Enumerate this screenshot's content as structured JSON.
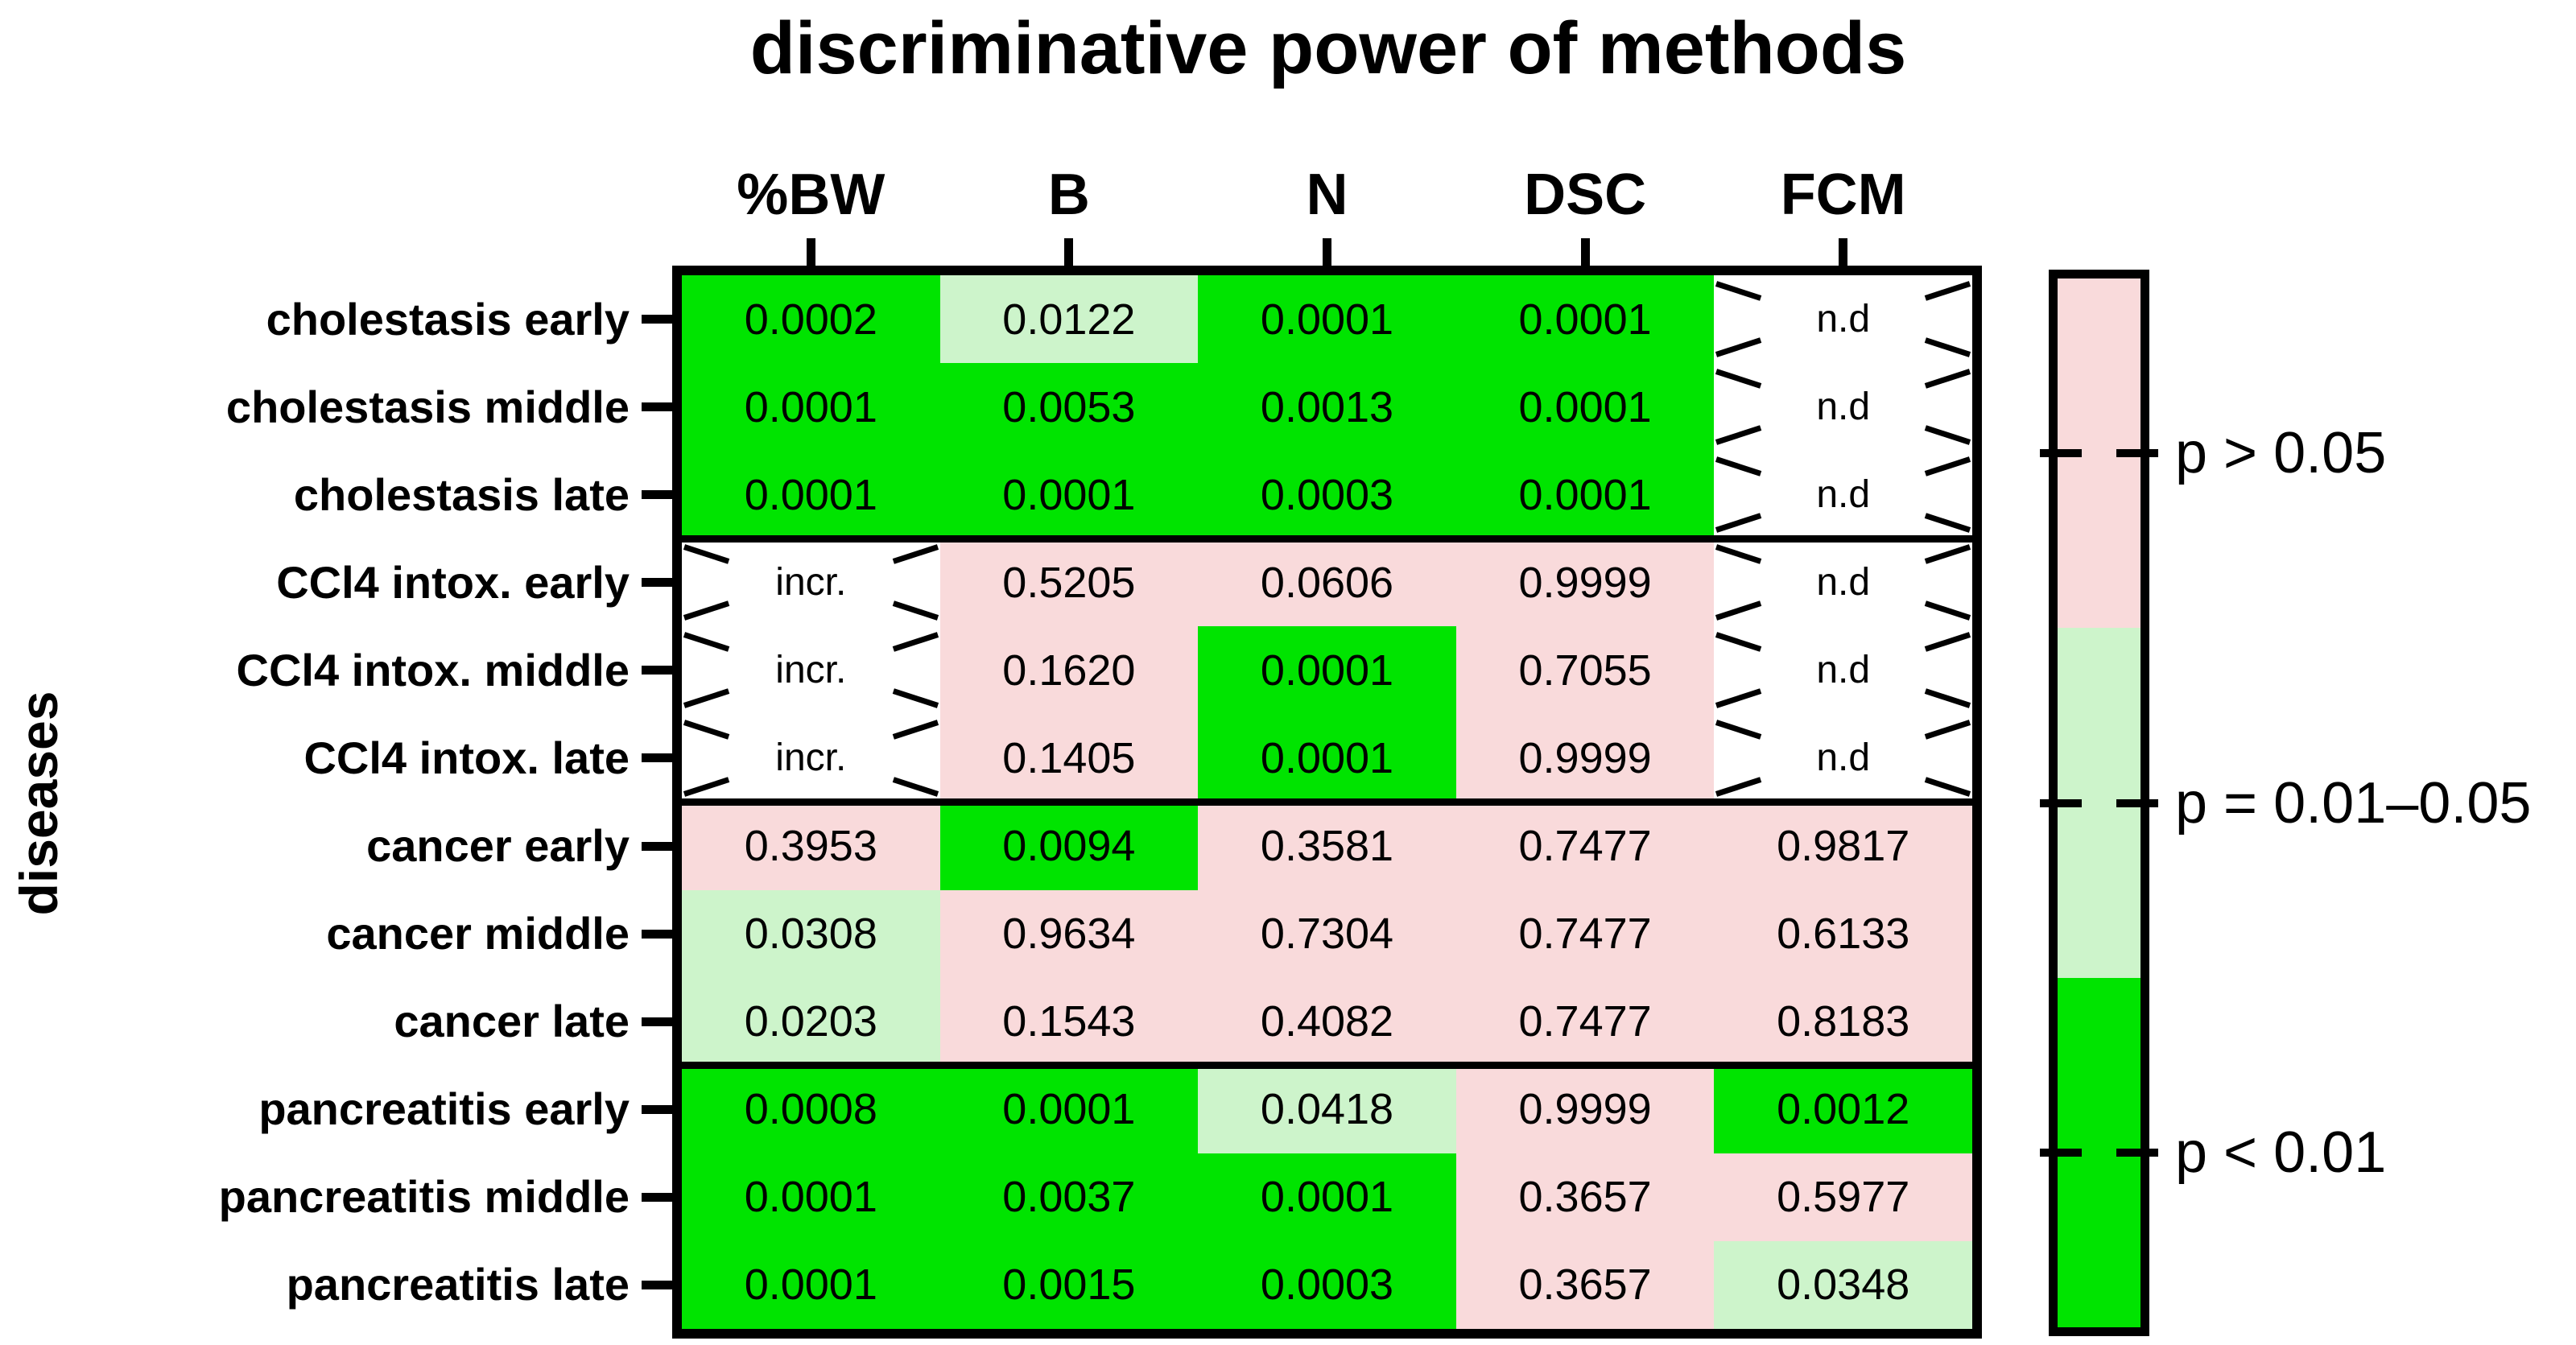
{
  "chart_data": {
    "type": "heatmap",
    "title": "discriminative power of methods",
    "xlabel": "",
    "ylabel": "diseases",
    "columns": [
      "%BW",
      "B",
      "N",
      "DSC",
      "FCM"
    ],
    "rows": [
      "cholestasis early",
      "cholestasis middle",
      "cholestasis late",
      "CCl4 intox. early",
      "CCl4 intox. middle",
      "CCl4 intox. late",
      "cancer early",
      "cancer middle",
      "cancer late",
      "pancreatitis early",
      "pancreatitis middle",
      "pancreatitis late"
    ],
    "row_groups": [
      [
        "cholestasis",
        3
      ],
      [
        "CCl4 intox.",
        3
      ],
      [
        "cancer",
        3
      ],
      [
        "pancreatitis",
        3
      ]
    ],
    "values": [
      [
        "0.0002",
        "0.0122",
        "0.0001",
        "0.0001",
        "n.d"
      ],
      [
        "0.0001",
        "0.0053",
        "0.0013",
        "0.0001",
        "n.d"
      ],
      [
        "0.0001",
        "0.0001",
        "0.0003",
        "0.0001",
        "n.d"
      ],
      [
        "incr.",
        "0.5205",
        "0.0606",
        "0.9999",
        "n.d"
      ],
      [
        "incr.",
        "0.1620",
        "0.0001",
        "0.7055",
        "n.d"
      ],
      [
        "incr.",
        "0.1405",
        "0.0001",
        "0.9999",
        "n.d"
      ],
      [
        "0.3953",
        "0.0094",
        "0.3581",
        "0.7477",
        "0.9817"
      ],
      [
        "0.0308",
        "0.9634",
        "0.7304",
        "0.7477",
        "0.6133"
      ],
      [
        "0.0203",
        "0.1543",
        "0.4082",
        "0.7477",
        "0.8183"
      ],
      [
        "0.0008",
        "0.0001",
        "0.0418",
        "0.9999",
        "0.0012"
      ],
      [
        "0.0001",
        "0.0037",
        "0.0001",
        "0.3657",
        "0.5977"
      ],
      [
        "0.0001",
        "0.0015",
        "0.0003",
        "0.3657",
        "0.0348"
      ]
    ],
    "levels": [
      [
        "green",
        "lightgreen",
        "green",
        "green",
        "white"
      ],
      [
        "green",
        "green",
        "green",
        "green",
        "white"
      ],
      [
        "green",
        "green",
        "green",
        "green",
        "white"
      ],
      [
        "white",
        "pink",
        "pink",
        "pink",
        "white"
      ],
      [
        "white",
        "pink",
        "green",
        "pink",
        "white"
      ],
      [
        "white",
        "pink",
        "green",
        "pink",
        "white"
      ],
      [
        "pink",
        "green",
        "pink",
        "pink",
        "pink"
      ],
      [
        "lightgreen",
        "pink",
        "pink",
        "pink",
        "pink"
      ],
      [
        "lightgreen",
        "pink",
        "pink",
        "pink",
        "pink"
      ],
      [
        "green",
        "green",
        "lightgreen",
        "pink",
        "green"
      ],
      [
        "green",
        "green",
        "green",
        "pink",
        "pink"
      ],
      [
        "green",
        "green",
        "green",
        "pink",
        "lightgreen"
      ]
    ],
    "palette": {
      "green": "#00e400",
      "lightgreen": "#cdf4cb",
      "pink": "#f9dadb",
      "white": "#ffffff"
    },
    "legend": [
      {
        "label": "p > 0.05",
        "level": "pink"
      },
      {
        "label": "p = 0.01–0.05",
        "level": "lightgreen"
      },
      {
        "label": "p < 0.01",
        "level": "green"
      }
    ],
    "legend_position": "right",
    "grid": false
  }
}
